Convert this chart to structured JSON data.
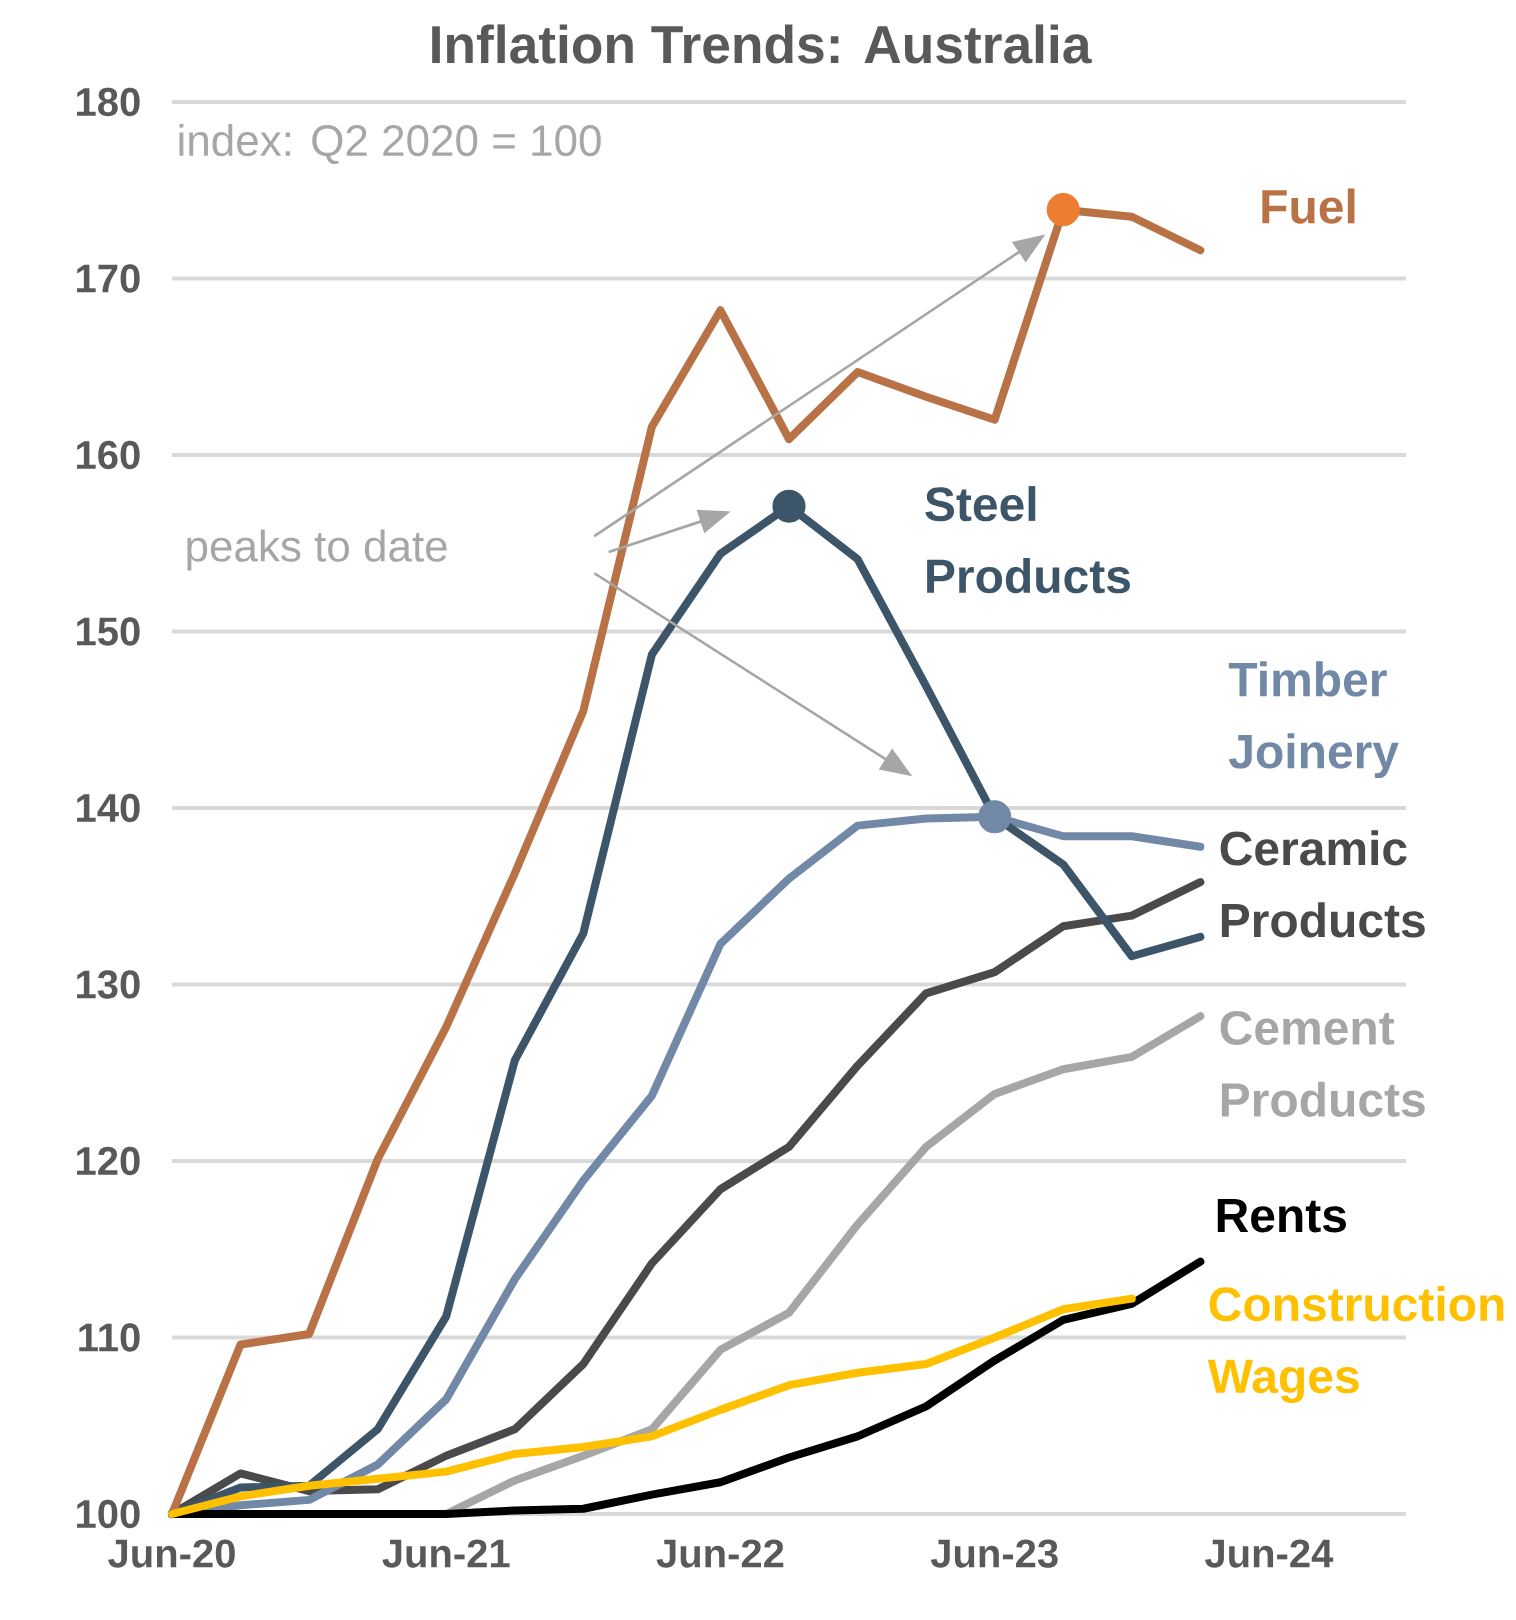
{
  "chart_data": {
    "type": "line",
    "title": "Inflation Trends: Australia",
    "annotations": [
      "index: Q2 2020 = 100",
      "peaks to date"
    ],
    "x": [
      "2020-06",
      "2020-09",
      "2020-12",
      "2021-03",
      "2021-06",
      "2021-09",
      "2021-12",
      "2022-03",
      "2022-06",
      "2022-09",
      "2022-12",
      "2023-03",
      "2023-06",
      "2023-09",
      "2023-12",
      "2024-03"
    ],
    "xlim": [
      "2020-06",
      "2024-12"
    ],
    "xticks": [
      {
        "value": "2020-06",
        "label": "Jun-20"
      },
      {
        "value": "2021-06",
        "label": "Jun-21"
      },
      {
        "value": "2022-06",
        "label": "Jun-22"
      },
      {
        "value": "2023-06",
        "label": "Jun-23"
      },
      {
        "value": "2024-06",
        "label": "Jun-24"
      }
    ],
    "ylim": [
      100,
      180
    ],
    "yticks": [
      100,
      110,
      120,
      130,
      140,
      150,
      160,
      170,
      180
    ],
    "grid": "y",
    "legend": false,
    "line_style": "solid",
    "series": [
      {
        "name": "Cement Products",
        "color": "#a6a6a6",
        "values": [
          null,
          null,
          null,
          null,
          100,
          101.9,
          103.3,
          104.8,
          109.3,
          111.4,
          116.4,
          120.8,
          123.8,
          125.2,
          125.9,
          128.2
        ]
      },
      {
        "name": "Ceramic Products",
        "color": "#4a4a4a",
        "values": [
          100,
          102.3,
          101.3,
          101.4,
          103.3,
          104.8,
          108.5,
          114.2,
          118.4,
          120.8,
          125.4,
          129.5,
          130.7,
          133.3,
          133.9,
          135.8
        ]
      },
      {
        "name": "Timber Joinery",
        "color": "#7189a6",
        "values": [
          100,
          100.5,
          100.8,
          102.8,
          106.5,
          113.3,
          118.9,
          123.7,
          132.3,
          136.0,
          139.0,
          139.4,
          139.5,
          138.4,
          138.4,
          137.8
        ]
      },
      {
        "name": "Steel Products",
        "color": "#3d5569",
        "values": [
          100,
          101.5,
          101.6,
          104.8,
          111.2,
          125.7,
          132.9,
          148.7,
          154.4,
          157.1,
          154.1,
          146.9,
          139.5,
          136.8,
          131.6,
          132.7
        ]
      },
      {
        "name": "Fuel",
        "color": "#b87246",
        "values": [
          100,
          109.6,
          110.2,
          120.1,
          127.6,
          136.3,
          145.5,
          161.6,
          168.2,
          160.9,
          164.7,
          163.3,
          162.0,
          173.9,
          173.5,
          171.6
        ]
      },
      {
        "name": "Rents",
        "color": "#000000",
        "values": [
          100,
          100,
          100,
          100,
          100,
          100.2,
          100.3,
          101.1,
          101.8,
          103.2,
          104.4,
          106.1,
          108.7,
          111.0,
          111.9,
          114.3
        ]
      },
      {
        "name": "Construction Wages",
        "color": "#ffc000",
        "values": [
          100,
          101.0,
          101.6,
          102.0,
          102.4,
          103.4,
          103.8,
          104.4,
          105.9,
          107.3,
          108.0,
          108.5,
          110.0,
          111.6,
          112.2,
          null
        ]
      },
      {
        "type": "scatter",
        "x": [
          "2023-09"
        ],
        "color": "#ed7d31",
        "values": [
          173.9
        ]
      },
      {
        "type": "scatter",
        "x": [
          "2022-09"
        ],
        "color": "#3d5569",
        "values": [
          157.1
        ]
      },
      {
        "type": "scatter",
        "x": [
          "2023-06"
        ],
        "color": "#7189a6",
        "values": [
          139.5
        ]
      }
    ]
  }
}
